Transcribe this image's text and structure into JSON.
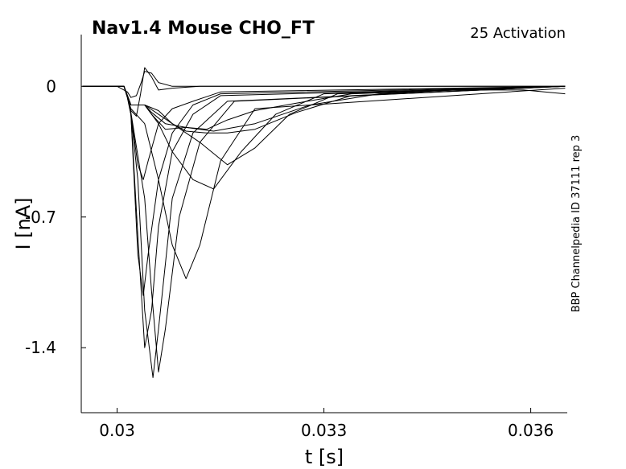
{
  "chart_data": {
    "type": "line",
    "title": "Nav1.4  Mouse  CHO_FT",
    "subtitle": "25  Activation",
    "side_label": "BBP Channelpedia ID 37111 rep 3",
    "xlabel": "t [s]",
    "ylabel": "I [nA]",
    "xlim": [
      0.02948,
      0.03653
    ],
    "ylim": [
      -1.748,
      0.277
    ],
    "xticks": [
      0.03,
      0.033,
      0.036
    ],
    "xtick_labels": [
      "0.03",
      "0.033",
      "0.036"
    ],
    "yticks": [
      0,
      -0.7,
      -1.4
    ],
    "ytick_labels": [
      "0",
      "-0.7",
      "-1.4"
    ],
    "grid": false,
    "legend": "none",
    "line_color": "#000000",
    "series": [
      {
        "x": [
          0.0295,
          0.03,
          0.03015,
          0.0302,
          0.03028,
          0.03035,
          0.0304,
          0.0305,
          0.0306,
          0.0308,
          0.031,
          0.032,
          0.0365
        ],
        "y": [
          0.0,
          0.0,
          -0.03,
          -0.06,
          -0.05,
          0.02,
          0.08,
          0.07,
          0.02,
          0.0,
          0.0,
          0.0,
          0.0
        ]
      },
      {
        "x": [
          0.0295,
          0.0301,
          0.03015,
          0.0302,
          0.03028,
          0.03034,
          0.0304,
          0.0305,
          0.0306,
          0.0308,
          0.0312,
          0.0365
        ],
        "y": [
          0.0,
          0.0,
          -0.06,
          -0.13,
          -0.16,
          -0.04,
          0.1,
          0.05,
          -0.02,
          -0.01,
          0.0,
          0.0
        ]
      },
      {
        "x": [
          0.0295,
          0.0301,
          0.03015,
          0.0302,
          0.0303,
          0.03038,
          0.03045,
          0.0306,
          0.0308,
          0.0311,
          0.0315,
          0.0365
        ],
        "y": [
          0.0,
          0.0,
          -0.06,
          -0.15,
          -0.42,
          -0.5,
          -0.4,
          -0.2,
          -0.12,
          -0.08,
          -0.03,
          0.0
        ]
      },
      {
        "x": [
          0.0295,
          0.0301,
          0.03015,
          0.0302,
          0.0303,
          0.03038,
          0.03045,
          0.0306,
          0.0308,
          0.0311,
          0.0315,
          0.0365
        ],
        "y": [
          0.0,
          0.0,
          -0.06,
          -0.15,
          -0.9,
          -1.12,
          -0.9,
          -0.5,
          -0.25,
          -0.1,
          -0.04,
          0.0
        ]
      },
      {
        "x": [
          0.0295,
          0.0301,
          0.03015,
          0.0302,
          0.0303,
          0.0304,
          0.0305,
          0.0306,
          0.0308,
          0.0311,
          0.0315,
          0.0365
        ],
        "y": [
          0.0,
          0.0,
          -0.06,
          -0.15,
          -0.8,
          -1.4,
          -1.2,
          -0.75,
          -0.35,
          -0.15,
          -0.05,
          0.0
        ]
      },
      {
        "x": [
          0.0295,
          0.0301,
          0.03015,
          0.0302,
          0.0303,
          0.0304,
          0.03052,
          0.0306,
          0.0308,
          0.0311,
          0.0316,
          0.0365
        ],
        "y": [
          0.0,
          0.0,
          -0.06,
          -0.15,
          -0.5,
          -1.2,
          -1.56,
          -1.3,
          -0.6,
          -0.25,
          -0.08,
          0.0
        ]
      },
      {
        "x": [
          0.0295,
          0.0301,
          0.03015,
          0.0302,
          0.0304,
          0.0305,
          0.0306,
          0.0307,
          0.0309,
          0.0312,
          0.0317,
          0.0365
        ],
        "y": [
          0.0,
          0.0,
          -0.06,
          -0.14,
          -0.6,
          -1.1,
          -1.53,
          -1.3,
          -0.7,
          -0.3,
          -0.08,
          0.0
        ]
      },
      {
        "x": [
          0.0295,
          0.0301,
          0.03015,
          0.0302,
          0.0304,
          0.0306,
          0.0308,
          0.031,
          0.0312,
          0.0315,
          0.032,
          0.0365
        ],
        "y": [
          0.0,
          0.0,
          -0.06,
          -0.12,
          -0.2,
          -0.5,
          -0.85,
          -1.03,
          -0.85,
          -0.4,
          -0.12,
          -0.01
        ]
      },
      {
        "x": [
          0.0295,
          0.0301,
          0.0302,
          0.0304,
          0.0306,
          0.0308,
          0.0311,
          0.0314,
          0.0318,
          0.0323,
          0.033,
          0.0365
        ],
        "y": [
          0.0,
          0.0,
          -0.1,
          -0.1,
          -0.2,
          -0.35,
          -0.5,
          -0.55,
          -0.35,
          -0.15,
          -0.04,
          0.0
        ]
      },
      {
        "x": [
          0.0295,
          0.0301,
          0.0302,
          0.0304,
          0.0306,
          0.0308,
          0.0312,
          0.0316,
          0.032,
          0.0325,
          0.0332,
          0.0365
        ],
        "y": [
          0.0,
          0.0,
          -0.1,
          -0.1,
          -0.15,
          -0.2,
          -0.3,
          -0.42,
          -0.33,
          -0.15,
          -0.04,
          0.0
        ]
      },
      {
        "x": [
          0.0295,
          0.0301,
          0.0302,
          0.0304,
          0.0306,
          0.0308,
          0.031,
          0.0313,
          0.0316,
          0.032,
          0.0326,
          0.0334,
          0.0365
        ],
        "y": [
          0.0,
          0.0,
          -0.1,
          -0.1,
          -0.13,
          -0.2,
          -0.24,
          -0.25,
          -0.25,
          -0.23,
          -0.14,
          -0.05,
          0.0
        ]
      },
      {
        "x": [
          0.0295,
          0.0301,
          0.0302,
          0.0304,
          0.0305,
          0.0307,
          0.031,
          0.0314,
          0.032,
          0.0328,
          0.0338,
          0.0349,
          0.0359,
          0.0365
        ],
        "y": [
          0.0,
          0.0,
          -0.1,
          -0.1,
          -0.15,
          -0.23,
          -0.22,
          -0.24,
          -0.2,
          -0.1,
          -0.04,
          -0.02,
          -0.02,
          -0.04
        ]
      },
      {
        "x": [
          0.0295,
          0.0301,
          0.0302,
          0.0304,
          0.0305,
          0.0307,
          0.031,
          0.0313,
          0.0316,
          0.032,
          0.0326,
          0.0334,
          0.0365
        ],
        "y": [
          0.0,
          0.0,
          -0.1,
          -0.1,
          -0.14,
          -0.2,
          -0.22,
          -0.23,
          -0.18,
          -0.13,
          -0.09,
          -0.04,
          0.0
        ]
      }
    ]
  }
}
